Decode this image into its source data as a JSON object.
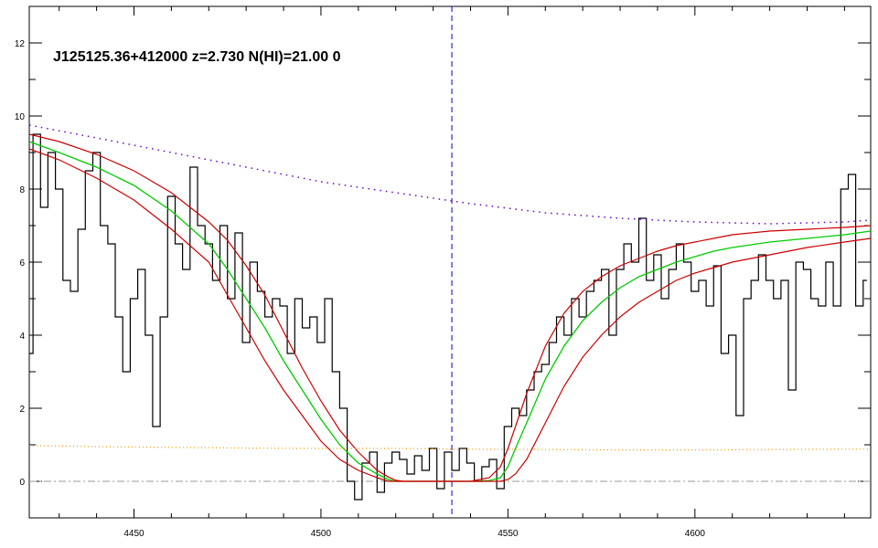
{
  "chart_data": {
    "type": "line",
    "title": "J125125.36+412000 z=2.730 N(HI)=21.00 0",
    "xlabel": "",
    "ylabel": "",
    "xlim": [
      4422,
      4647
    ],
    "ylim": [
      -1,
      13
    ],
    "x_ticks": [
      4450,
      4500,
      4550,
      4600
    ],
    "y_ticks": [
      0,
      2,
      4,
      6,
      8,
      10,
      12
    ],
    "grid": false,
    "marker_line_x": 4535,
    "zero_level": 0,
    "colors": {
      "flux": "#000000",
      "model": "#00cc00",
      "model_bounds": "#cc0000",
      "continuum": "#6600cc",
      "error": "#ff9900",
      "marker": "#0000cc",
      "zero": "#999999"
    },
    "series": [
      {
        "kind": "flux",
        "x": [
          4422,
          4424,
          4426,
          4428,
          4430,
          4432,
          4434,
          4436,
          4438,
          4440,
          4442,
          4444,
          4446,
          4448,
          4450,
          4452,
          4454,
          4456,
          4458,
          4460,
          4462,
          4464,
          4466,
          4468,
          4470,
          4472,
          4474,
          4476,
          4478,
          4480,
          4482,
          4484,
          4486,
          4488,
          4490,
          4492,
          4494,
          4496,
          4498,
          4500,
          4502,
          4504,
          4506,
          4508,
          4510,
          4512,
          4514,
          4516,
          4518,
          4520,
          4522,
          4524,
          4526,
          4528,
          4530,
          4532,
          4534,
          4536,
          4538,
          4540,
          4542,
          4544,
          4546,
          4548,
          4550,
          4552,
          4554,
          4556,
          4558,
          4560,
          4562,
          4564,
          4566,
          4568,
          4570,
          4572,
          4574,
          4576,
          4578,
          4580,
          4582,
          4584,
          4586,
          4588,
          4590,
          4592,
          4594,
          4596,
          4598,
          4600,
          4602,
          4604,
          4606,
          4608,
          4610,
          4612,
          4614,
          4616,
          4618,
          4620,
          4622,
          4624,
          4626,
          4628,
          4630,
          4632,
          4634,
          4636,
          4638,
          4640,
          4642,
          4644,
          4646
        ],
        "values": [
          3.5,
          9.5,
          7.5,
          9.0,
          8.0,
          5.5,
          5.2,
          6.9,
          8.5,
          9.0,
          7.0,
          6.5,
          4.5,
          3.0,
          5.0,
          5.8,
          4.0,
          1.5,
          4.5,
          7.8,
          6.5,
          5.8,
          8.6,
          7.0,
          6.5,
          5.5,
          7.0,
          5.0,
          6.8,
          3.8,
          6.0,
          5.2,
          4.5,
          5.0,
          4.8,
          3.5,
          5.0,
          4.2,
          4.5,
          3.8,
          5.0,
          3.0,
          2.0,
          0.0,
          -0.5,
          0.5,
          0.8,
          -0.3,
          0.5,
          0.8,
          0.6,
          0.2,
          0.7,
          0.3,
          0.9,
          -0.2,
          0.8,
          0.3,
          0.9,
          0.5,
          0.0,
          0.4,
          0.6,
          -0.2,
          1.5,
          2.0,
          1.8,
          2.5,
          3.0,
          3.2,
          3.8,
          4.5,
          4.0,
          5.0,
          4.5,
          5.2,
          5.5,
          5.8,
          4.0,
          5.8,
          6.5,
          6.0,
          7.2,
          5.5,
          6.2,
          5.0,
          5.8,
          6.5,
          6.0,
          5.2,
          5.5,
          4.8,
          5.9,
          3.5,
          4.0,
          1.8,
          5.0,
          5.5,
          6.2,
          5.5,
          5.0,
          5.5,
          2.5,
          6.0,
          5.8,
          5.0,
          4.8,
          6.0,
          4.8,
          8.0,
          8.4,
          4.8,
          5.5
        ]
      },
      {
        "kind": "model",
        "x": [
          4422,
          4430,
          4440,
          4450,
          4460,
          4470,
          4475,
          4480,
          4485,
          4490,
          4495,
          4500,
          4505,
          4510,
          4515,
          4518,
          4520,
          4522,
          4525,
          4530,
          4535,
          4540,
          4545,
          4548,
          4550,
          4552,
          4555,
          4560,
          4565,
          4570,
          4575,
          4580,
          4585,
          4590,
          4595,
          4600,
          4605,
          4610,
          4620,
          4630,
          4640,
          4647
        ],
        "values": [
          9.3,
          9.0,
          8.6,
          8.1,
          7.4,
          6.5,
          5.8,
          5.0,
          4.2,
          3.3,
          2.5,
          1.7,
          1.0,
          0.5,
          0.2,
          0.05,
          0.0,
          0.0,
          0.0,
          0.0,
          0.0,
          0.0,
          0.02,
          0.1,
          0.4,
          0.9,
          1.6,
          2.8,
          3.7,
          4.4,
          4.9,
          5.3,
          5.6,
          5.8,
          6.0,
          6.15,
          6.3,
          6.4,
          6.55,
          6.65,
          6.75,
          6.85
        ]
      },
      {
        "kind": "model_bound",
        "x": [
          4422,
          4430,
          4440,
          4450,
          4460,
          4470,
          4475,
          4480,
          4485,
          4490,
          4495,
          4500,
          4505,
          4510,
          4515,
          4518,
          4520,
          4522,
          4525,
          4530,
          4535,
          4540,
          4545,
          4548,
          4550,
          4552,
          4555,
          4560,
          4565,
          4570,
          4575,
          4580,
          4585,
          4590,
          4595,
          4600,
          4605,
          4610,
          4620,
          4630,
          4640,
          4647
        ],
        "values": [
          9.5,
          9.3,
          8.95,
          8.5,
          7.9,
          7.1,
          6.6,
          5.9,
          5.1,
          4.1,
          3.1,
          2.2,
          1.4,
          0.8,
          0.3,
          0.12,
          0.03,
          0.0,
          0.0,
          0.0,
          0.0,
          0.0,
          0.1,
          0.4,
          0.9,
          1.5,
          2.4,
          3.7,
          4.6,
          5.2,
          5.6,
          5.9,
          6.1,
          6.3,
          6.45,
          6.55,
          6.65,
          6.75,
          6.85,
          6.9,
          6.95,
          7.0
        ]
      },
      {
        "kind": "model_bound",
        "x": [
          4422,
          4430,
          4440,
          4450,
          4460,
          4470,
          4475,
          4480,
          4485,
          4490,
          4495,
          4500,
          4505,
          4510,
          4515,
          4518,
          4520,
          4522,
          4525,
          4530,
          4535,
          4540,
          4545,
          4548,
          4550,
          4552,
          4555,
          4560,
          4565,
          4570,
          4575,
          4580,
          4585,
          4590,
          4595,
          4600,
          4605,
          4610,
          4620,
          4630,
          4640,
          4647
        ],
        "values": [
          9.1,
          8.8,
          8.3,
          7.7,
          6.9,
          6.0,
          5.1,
          4.2,
          3.3,
          2.5,
          1.8,
          1.1,
          0.6,
          0.3,
          0.1,
          0.0,
          0.0,
          0.0,
          0.0,
          0.0,
          0.0,
          0.0,
          0.0,
          0.0,
          0.05,
          0.2,
          0.6,
          1.6,
          2.6,
          3.4,
          4.0,
          4.5,
          4.9,
          5.2,
          5.5,
          5.7,
          5.85,
          6.0,
          6.2,
          6.4,
          6.55,
          6.65
        ]
      },
      {
        "kind": "continuum",
        "x": [
          4422,
          4440,
          4460,
          4480,
          4500,
          4520,
          4540,
          4560,
          4580,
          4600,
          4620,
          4640,
          4647
        ],
        "values": [
          9.75,
          9.4,
          9.0,
          8.6,
          8.2,
          7.9,
          7.6,
          7.35,
          7.2,
          7.1,
          7.05,
          7.1,
          7.15
        ]
      },
      {
        "kind": "error",
        "x": [
          4422,
          4440,
          4460,
          4480,
          4500,
          4520,
          4540,
          4560,
          4580,
          4600,
          4620,
          4640,
          4647
        ],
        "values": [
          0.98,
          0.95,
          0.93,
          0.91,
          0.9,
          0.9,
          0.88,
          0.87,
          0.86,
          0.86,
          0.87,
          0.88,
          0.88
        ]
      }
    ]
  }
}
